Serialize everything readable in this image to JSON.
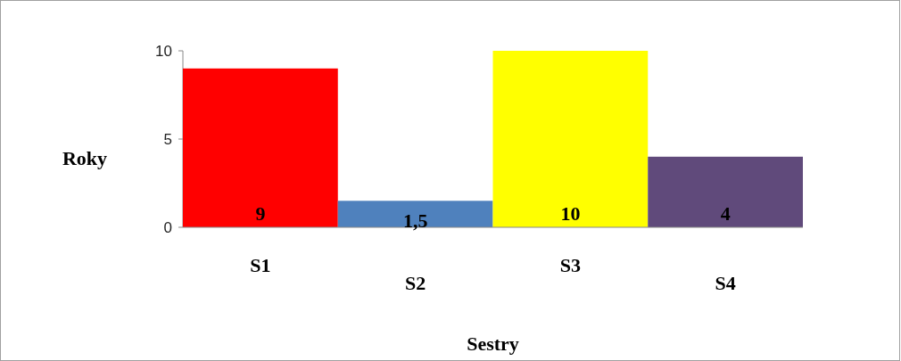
{
  "chart_data": {
    "type": "bar",
    "xlabel": "Sestry",
    "ylabel": "Roky",
    "categories": [
      "S1",
      "S2",
      "S3",
      "S4"
    ],
    "values": [
      9,
      1.5,
      10,
      4
    ],
    "colors": [
      "#ff0000",
      "#4f81bd",
      "#ffff00",
      "#604a7b"
    ],
    "value_labels": [
      "9",
      "1,5",
      "10",
      "4"
    ],
    "ylim": [
      0,
      10
    ],
    "yticks": [
      0,
      5,
      10
    ],
    "grid": false
  }
}
